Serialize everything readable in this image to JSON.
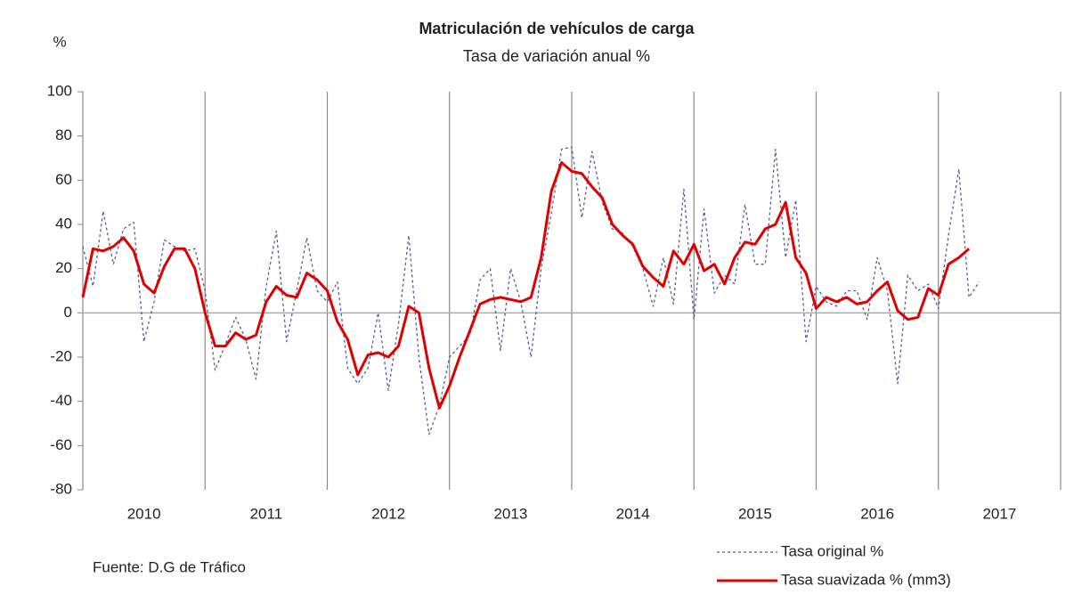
{
  "chart_data": {
    "type": "line",
    "title": "Matriculación de vehículos de carga",
    "subtitle": "Tasa de variación anual %",
    "y_label": "%",
    "source": "Fuente: D.G de Tráfico",
    "categories": [
      "2010",
      "2011",
      "2012",
      "2013",
      "2014",
      "2015",
      "2016",
      "2017"
    ],
    "xlim": [
      2010,
      2018
    ],
    "xticks": [
      2010,
      2011,
      2012,
      2013,
      2014,
      2015,
      2016,
      2017,
      2018
    ],
    "ylim": [
      -80,
      100
    ],
    "yticks": [
      -80,
      -60,
      -40,
      -20,
      0,
      20,
      40,
      60,
      80,
      100
    ],
    "series": [
      {
        "name": "Tasa original %",
        "color": "#5a5aa0",
        "style": "dotted",
        "x": [
          2010,
          2010.083,
          2010.167,
          2010.25,
          2010.333,
          2010.417,
          2010.5,
          2010.583,
          2010.667,
          2010.75,
          2010.833,
          2010.917,
          2011,
          2011.083,
          2011.167,
          2011.25,
          2011.333,
          2011.417,
          2011.5,
          2011.583,
          2011.667,
          2011.75,
          2011.833,
          2011.917,
          2012,
          2012.083,
          2012.167,
          2012.25,
          2012.333,
          2012.417,
          2012.5,
          2012.583,
          2012.667,
          2012.75,
          2012.833,
          2012.917,
          2013,
          2013.083,
          2013.167,
          2013.25,
          2013.333,
          2013.417,
          2013.5,
          2013.583,
          2013.667,
          2013.75,
          2013.833,
          2013.917,
          2014,
          2014.083,
          2014.167,
          2014.25,
          2014.333,
          2014.417,
          2014.5,
          2014.583,
          2014.667,
          2014.75,
          2014.833,
          2014.917,
          2015,
          2015.083,
          2015.167,
          2015.25,
          2015.333,
          2015.417,
          2015.5,
          2015.583,
          2015.667,
          2015.75,
          2015.833,
          2015.917,
          2016,
          2016.083,
          2016.167,
          2016.25,
          2016.333,
          2016.417,
          2016.5,
          2016.583,
          2016.667,
          2016.75,
          2016.833,
          2016.917,
          2017,
          2017.083,
          2017.167,
          2017.25,
          2017.333
        ],
        "values": [
          30,
          12,
          46,
          22,
          38,
          41,
          -13,
          5,
          33,
          30,
          28,
          29,
          10,
          -26,
          -14,
          -2,
          -12,
          -30,
          12,
          37,
          -13,
          10,
          34,
          10,
          5,
          14,
          -25,
          -32,
          -25,
          0,
          -35,
          -5,
          35,
          -20,
          -55,
          -42,
          -20,
          -15,
          -10,
          15,
          20,
          -17,
          20,
          5,
          -20,
          20,
          45,
          74,
          75,
          43,
          73,
          50,
          38,
          36,
          30,
          20,
          3,
          25,
          4,
          56,
          -3,
          47,
          9,
          17,
          13,
          49,
          22,
          22,
          74,
          25,
          51,
          -13,
          12,
          5,
          3,
          10,
          10,
          -3,
          25,
          10,
          -32,
          17,
          10,
          13,
          2,
          35,
          65,
          7,
          14
        ]
      },
      {
        "name": "Tasa suavizada % (mm3)",
        "color": "#e00000",
        "style": "solid",
        "x": [
          2010,
          2010.083,
          2010.167,
          2010.25,
          2010.333,
          2010.417,
          2010.5,
          2010.583,
          2010.667,
          2010.75,
          2010.833,
          2010.917,
          2011,
          2011.083,
          2011.167,
          2011.25,
          2011.333,
          2011.417,
          2011.5,
          2011.583,
          2011.667,
          2011.75,
          2011.833,
          2011.917,
          2012,
          2012.083,
          2012.167,
          2012.25,
          2012.333,
          2012.417,
          2012.5,
          2012.583,
          2012.667,
          2012.75,
          2012.833,
          2012.917,
          2013,
          2013.083,
          2013.167,
          2013.25,
          2013.333,
          2013.417,
          2013.5,
          2013.583,
          2013.667,
          2013.75,
          2013.833,
          2013.917,
          2014,
          2014.083,
          2014.167,
          2014.25,
          2014.333,
          2014.417,
          2014.5,
          2014.583,
          2014.667,
          2014.75,
          2014.833,
          2014.917,
          2015,
          2015.083,
          2015.167,
          2015.25,
          2015.333,
          2015.417,
          2015.5,
          2015.583,
          2015.667,
          2015.75,
          2015.833,
          2015.917,
          2016,
          2016.083,
          2016.167,
          2016.25,
          2016.333,
          2016.417,
          2016.5,
          2016.583,
          2016.667,
          2016.75,
          2016.833,
          2016.917,
          2017,
          2017.083,
          2017.167,
          2017.25
        ],
        "values": [
          7,
          29,
          28,
          30,
          34,
          28,
          13,
          9,
          21,
          29,
          29,
          20,
          0,
          -15,
          -15,
          -9,
          -12,
          -10,
          5,
          12,
          8,
          7,
          18,
          15,
          10,
          -4,
          -12,
          -28,
          -19,
          -18,
          -20,
          -15,
          3,
          0,
          -25,
          -43,
          -33,
          -20,
          -8,
          4,
          6,
          7,
          6,
          5,
          7,
          25,
          55,
          68,
          64,
          63,
          57,
          52,
          40,
          35,
          31,
          21,
          16,
          12,
          28,
          22,
          31,
          19,
          22,
          13,
          25,
          32,
          31,
          38,
          40,
          50,
          25,
          18,
          2,
          7,
          5,
          7,
          4,
          5,
          10,
          14,
          1,
          -3,
          -2,
          11,
          8,
          22,
          25,
          29
        ]
      }
    ]
  }
}
